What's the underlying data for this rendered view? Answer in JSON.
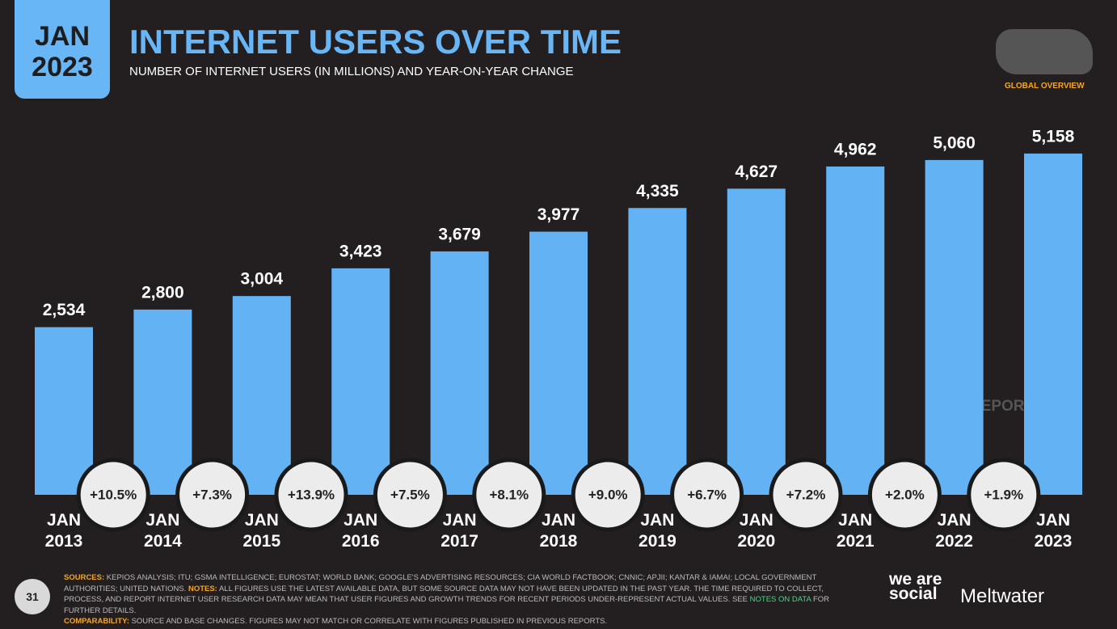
{
  "header": {
    "badge": "JAN 2023",
    "title": "INTERNET USERS OVER TIME",
    "subtitle": "NUMBER OF INTERNET USERS (IN MILLIONS) AND YEAR-ON-YEAR CHANGE",
    "section": "GLOBAL OVERVIEW",
    "watermark": "DATAREPORTAL"
  },
  "chart_data": {
    "type": "bar",
    "categories": [
      "JAN 2013",
      "JAN 2014",
      "JAN 2015",
      "JAN 2016",
      "JAN 2017",
      "JAN 2018",
      "JAN 2019",
      "JAN 2020",
      "JAN 2021",
      "JAN 2022",
      "JAN 2023"
    ],
    "values": [
      2534,
      2800,
      3004,
      3423,
      3679,
      3977,
      4335,
      4627,
      4962,
      5060,
      5158
    ],
    "value_labels": [
      "2,534",
      "2,800",
      "3,004",
      "3,423",
      "3,679",
      "3,977",
      "4,335",
      "4,627",
      "4,962",
      "5,060",
      "5,158"
    ],
    "color": "#62b2f4",
    "ylim": [
      0,
      6000
    ],
    "changes": {
      "values": [
        10.5,
        7.3,
        13.9,
        7.5,
        8.1,
        9.0,
        6.7,
        7.2,
        2.0,
        1.9
      ],
      "value_labels": [
        "+10.5%",
        "+7.3%",
        "+13.9%",
        "+7.5%",
        "+8.1%",
        "+9.0%",
        "+6.7%",
        "+7.2%",
        "+2.0%",
        "+1.9%"
      ]
    }
  },
  "footer": {
    "page": "31",
    "sources_label": "SOURCES:",
    "sources": "KEPIOS ANALYSIS; ITU; GSMA INTELLIGENCE; EUROSTAT; WORLD BANK; GOOGLE'S ADVERTISING RESOURCES; CIA WORLD FACTBOOK; CNNIC; APJII; KANTAR & IAMAI; LOCAL GOVERNMENT AUTHORITIES; UNITED NATIONS.",
    "notes_label": "NOTES:",
    "notes": "ALL FIGURES USE THE LATEST AVAILABLE DATA, BUT SOME SOURCE DATA MAY NOT HAVE BEEN UPDATED IN THE PAST YEAR. THE TIME REQUIRED TO COLLECT, PROCESS, AND REPORT INTERNET USER RESEARCH DATA MAY MEAN THAT USER FIGURES AND GROWTH TRENDS FOR RECENT PERIODS UNDER-REPRESENT ACTUAL VALUES. SEE",
    "notes_link": "NOTES ON DATA",
    "notes_end": "FOR FURTHER DETAILS.",
    "comparability_label": "COMPARABILITY:",
    "comparability": "SOURCE AND BASE CHANGES. FIGURES MAY NOT MATCH OR CORRELATE WITH FIGURES PUBLISHED IN PREVIOUS REPORTS.",
    "brand1": "we are social",
    "brand2": "Meltwater"
  }
}
